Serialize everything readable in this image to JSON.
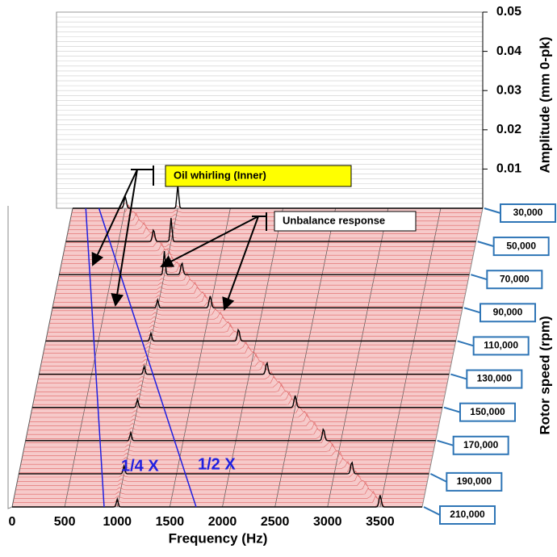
{
  "chart_data": {
    "type": "waterfall",
    "x_label": "Frequency (Hz)",
    "xlim": [
      0,
      3900
    ],
    "xticks": [
      0,
      500,
      1000,
      1500,
      2000,
      2500,
      3000,
      3500
    ],
    "y_label": "Amplitude (mm 0-pk)",
    "ylim": [
      0,
      0.05
    ],
    "yticks": [
      0.01,
      0.02,
      0.03,
      0.04,
      0.05
    ],
    "z_label": "Rotor speed (rpm)",
    "zlim": [
      30000,
      210000
    ],
    "zticks": [
      {
        "value": 30000,
        "label": "30,000"
      },
      {
        "value": 50000,
        "label": "50,000"
      },
      {
        "value": 70000,
        "label": "70,000"
      },
      {
        "value": 90000,
        "label": "90,000"
      },
      {
        "value": 110000,
        "label": "110,000"
      },
      {
        "value": 130000,
        "label": "130,000"
      },
      {
        "value": 150000,
        "label": "150,000"
      },
      {
        "value": 170000,
        "label": "170,000"
      },
      {
        "value": 190000,
        "label": "190,000"
      },
      {
        "value": 210000,
        "label": "210,000"
      }
    ],
    "annotations": [
      "Oil whirling (Inner)",
      "Unbalance response",
      "1/4 X",
      "1/2 X"
    ]
  }
}
